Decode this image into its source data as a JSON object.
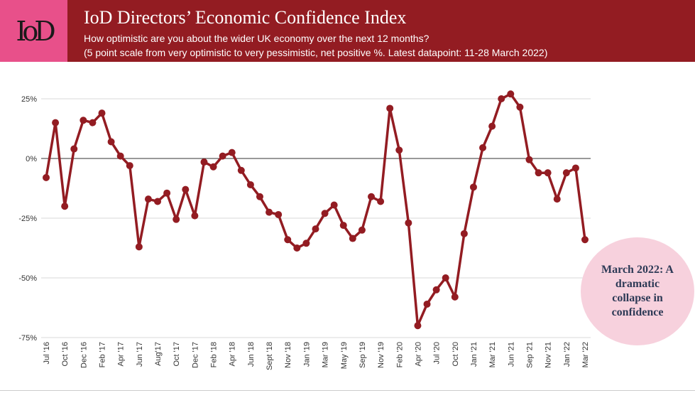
{
  "header": {
    "logo_text": "IoD",
    "title": "IoD Directors’ Economic Confidence Index",
    "subtitle_line1": "How optimistic are you about the wider UK economy over the next 12 months?",
    "subtitle_line2": "(5 point scale from very optimistic to very pessimistic, net positive %. Latest datapoint: 11-28 March 2022)"
  },
  "callout": {
    "text": "March 2022: A dramatic collapse in confidence"
  },
  "colors": {
    "header_bg": "#931c22",
    "logo_bg": "#e8508a",
    "series": "#931c22",
    "callout_bg": "#f7d1dd",
    "callout_text": "#2d3a56"
  },
  "chart_data": {
    "type": "line",
    "x_start": "Jul '16",
    "x_end": "Mar '22",
    "x_tick_labels": [
      "Jul '16",
      "Oct '16",
      "Dec '16",
      "Feb '17",
      "Apr '17",
      "Jun '17",
      "Aug'17",
      "Oct '17",
      "Dec '17",
      "Feb '18",
      "Apr '18",
      "Jun '18",
      "Sept '18",
      "Nov '18",
      "Jan '19",
      "Mar '19",
      "May '19",
      "Sep '19",
      "Nov '19",
      "Feb '20",
      "Apr '20",
      "Jul '20",
      "Oct '20",
      "Jan '21",
      "Mar '21",
      "Jun '21",
      "Sep '21",
      "Nov '21",
      "Jan '22",
      "Mar '22"
    ],
    "y_ticks": [
      25,
      0,
      -25,
      -50,
      -75
    ],
    "y_tick_labels": [
      "25%",
      "0%",
      "-25%",
      "-50%",
      "-75%"
    ],
    "ylim": [
      -75,
      30
    ],
    "grid": true,
    "values": [
      -8,
      15,
      -20,
      4,
      16,
      15,
      19,
      7,
      1,
      -3,
      -37,
      -17,
      -18,
      -14.5,
      -25.5,
      -13,
      -24,
      -1.5,
      -3.5,
      1,
      2.5,
      -5,
      -11,
      -16,
      -22.5,
      -23.5,
      -34,
      -37.5,
      -35.5,
      -29.5,
      -23,
      -19.5,
      -28,
      -33.5,
      -30,
      -16,
      -18,
      21,
      3.5,
      -27,
      -70,
      -61,
      -55,
      -50,
      -58,
      -31.5,
      -12,
      4.5,
      13.5,
      25,
      27,
      21.5,
      -0.5,
      -6,
      -6,
      -17,
      -6,
      -4,
      -34
    ]
  }
}
